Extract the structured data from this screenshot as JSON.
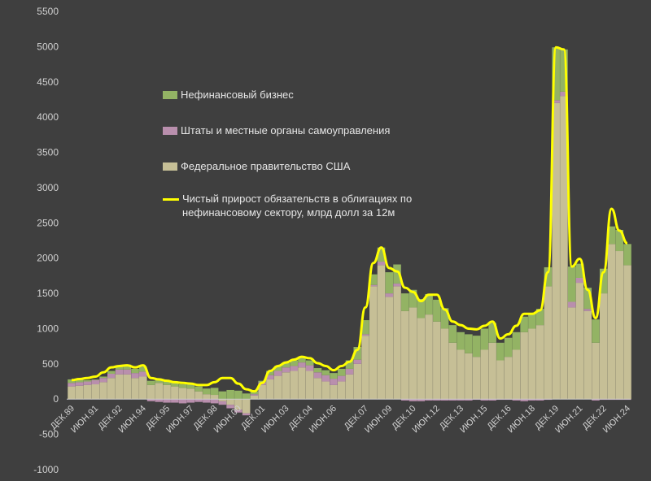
{
  "chart_data": {
    "type": "area",
    "title": "",
    "xlabel": "",
    "ylabel": "",
    "ylim": [
      -1000,
      5500
    ],
    "ytick_step": 500,
    "grid": false,
    "legend_position": "inside-left",
    "colors": {
      "background": "#3f3f3f",
      "nonfin": "#93b364",
      "states": "#b98fad",
      "federal": "#c6bf96",
      "total_line": "#ffff00",
      "text": "#d0d0d0",
      "axis": "#cccccc"
    },
    "y_tick_labels": [
      "-1000",
      "-500",
      "0",
      "500",
      "1000",
      "1500",
      "2000",
      "2500",
      "3000",
      "3500",
      "4000",
      "4500",
      "5000",
      "5500"
    ],
    "x_tick_labels": [
      "ДЕК.89",
      "ИЮН.91",
      "ДЕК.92",
      "ИЮН.94",
      "ДЕК.95",
      "ИЮН.97",
      "ДЕК.98",
      "ИЮН.00",
      "ДЕК.01",
      "ИЮН.03",
      "ДЕК.04",
      "ИЮН.06",
      "ДЕК.07",
      "ИЮН.09",
      "ДЕК.10",
      "ИЮН.12",
      "ДЕК.13",
      "ИЮН.15",
      "ДЕК.16",
      "ИЮН.18",
      "ДЕК.19",
      "ИЮН.21",
      "ДЕК.22",
      "ИЮН.24"
    ],
    "x": [
      "ДЕК.89",
      "ИЮН.90",
      "ДЕК.90",
      "ИЮН.91",
      "ДЕК.91",
      "ИЮН.92",
      "ДЕК.92",
      "ИЮН.93",
      "ДЕК.93",
      "ИЮН.94",
      "ДЕК.94",
      "ИЮН.95",
      "ДЕК.95",
      "ИЮН.96",
      "ДЕК.96",
      "ИЮН.97",
      "ДЕК.97",
      "ИЮН.98",
      "ДЕК.98",
      "ИЮН.99",
      "ДЕК.99",
      "ИЮН.00",
      "ДЕК.00",
      "ИЮН.01",
      "ДЕК.01",
      "ИЮН.02",
      "ДЕК.02",
      "ИЮН.03",
      "ДЕК.03",
      "ИЮН.04",
      "ДЕК.04",
      "ИЮН.05",
      "ДЕК.05",
      "ИЮН.06",
      "ДЕК.06",
      "ИЮН.07",
      "ДЕК.07",
      "ИЮН.08",
      "ДЕК.08",
      "ИЮН.09",
      "ДЕК.09",
      "ИЮН.10",
      "ДЕК.10",
      "ИЮН.11",
      "ДЕК.11",
      "ИЮН.12",
      "ДЕК.12",
      "ИЮН.13",
      "ДЕК.13",
      "ИЮН.14",
      "ДЕК.14",
      "ИЮН.15",
      "ДЕК.15",
      "ИЮН.16",
      "ДЕК.16",
      "ИЮН.17",
      "ДЕК.17",
      "ИЮН.18",
      "ДЕК.18",
      "ИЮН.19",
      "ДЕК.19",
      "ИЮН.20",
      "ДЕК.20",
      "ИЮН.21",
      "ДЕК.21",
      "ИЮН.22",
      "ДЕК.22",
      "ИЮН.23",
      "ДЕК.23",
      "ИЮН.24",
      "ДЕК.24"
    ],
    "series": [
      {
        "key": "nonfin",
        "name": "Нефинансовый бизнес",
        "values": [
          50,
          40,
          20,
          10,
          20,
          40,
          60,
          70,
          60,
          70,
          60,
          50,
          60,
          60,
          50,
          60,
          70,
          80,
          100,
          110,
          130,
          120,
          80,
          40,
          20,
          60,
          70,
          60,
          80,
          80,
          70,
          60,
          70,
          80,
          100,
          120,
          180,
          200,
          150,
          200,
          300,
          270,
          250,
          250,
          270,
          290,
          310,
          290,
          250,
          250,
          270,
          300,
          300,
          280,
          250,
          270,
          250,
          220,
          220,
          230,
          270,
          750,
          600,
          500,
          200,
          300,
          330,
          350,
          250,
          300,
          300
        ]
      },
      {
        "key": "states",
        "name": "Штаты и местные органы самоуправления",
        "values": [
          50,
          50,
          50,
          60,
          60,
          60,
          70,
          70,
          70,
          70,
          -30,
          -40,
          -50,
          -50,
          -60,
          -50,
          -40,
          -50,
          -60,
          -50,
          -50,
          -40,
          -30,
          20,
          40,
          60,
          70,
          70,
          70,
          70,
          80,
          80,
          90,
          90,
          80,
          80,
          60,
          20,
          20,
          50,
          50,
          40,
          -20,
          -30,
          -30,
          -20,
          -20,
          -20,
          -20,
          -20,
          -20,
          -10,
          -20,
          -20,
          -10,
          -10,
          -20,
          -30,
          -20,
          -20,
          -10,
          40,
          60,
          80,
          70,
          30,
          -20,
          -10,
          -10,
          -10,
          -10
        ]
      },
      {
        "key": "federal",
        "name": "Федеральное правительство США",
        "values": [
          180,
          190,
          200,
          210,
          240,
          300,
          350,
          350,
          300,
          320,
          200,
          230,
          200,
          180,
          160,
          150,
          110,
          70,
          60,
          -30,
          -80,
          -150,
          -200,
          50,
          200,
          280,
          330,
          380,
          400,
          450,
          400,
          300,
          250,
          200,
          250,
          350,
          500,
          900,
          1600,
          1900,
          1450,
          1600,
          1250,
          1300,
          1150,
          1200,
          1100,
          1000,
          800,
          700,
          650,
          600,
          700,
          800,
          550,
          600,
          700,
          950,
          1000,
          1050,
          1600,
          4200,
          4300,
          1300,
          1650,
          1250,
          800,
          1500,
          2200,
          2100,
          1900
        ]
      },
      {
        "key": "total",
        "name": "Чистый прирост обязательств в облигациях по\nнефинансовому сектору, млрд долл за 12м",
        "values": [
          270,
          285,
          300,
          320,
          380,
          450,
          470,
          480,
          450,
          480,
          300,
          280,
          260,
          240,
          230,
          220,
          200,
          200,
          240,
          300,
          300,
          220,
          140,
          110,
          230,
          400,
          470,
          520,
          560,
          600,
          580,
          510,
          470,
          410,
          470,
          530,
          700,
          1300,
          1930,
          2150,
          1860,
          1810,
          1580,
          1520,
          1390,
          1480,
          1480,
          1270,
          1100,
          1050,
          1000,
          990,
          1040,
          1100,
          860,
          920,
          1040,
          1210,
          1210,
          1260,
          1800,
          4990,
          4960,
          1880,
          1990,
          1550,
          1150,
          1800,
          2700,
          2390,
          2210
        ]
      }
    ]
  },
  "legend": {
    "items": [
      {
        "label": "Нефинансовый бизнес"
      },
      {
        "label": "Штаты и местные органы самоуправления"
      },
      {
        "label": "Федеральное правительство США"
      },
      {
        "label": "Чистый прирост обязательств в облигациях по\nнефинансовому сектору, млрд долл за 12м"
      }
    ]
  }
}
